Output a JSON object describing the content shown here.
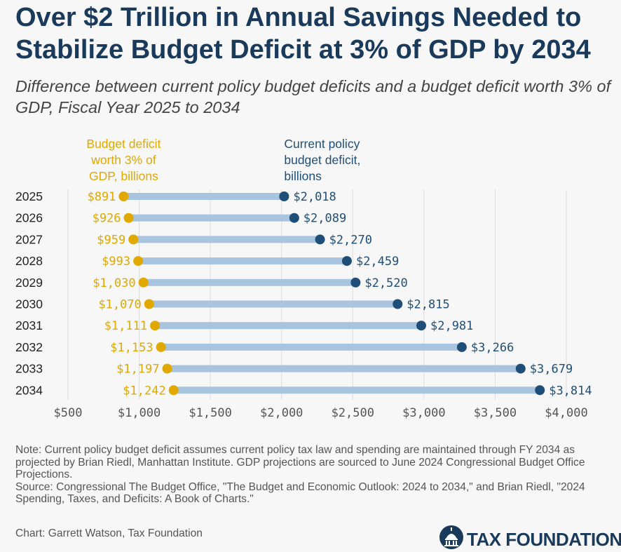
{
  "title": "Over $2 Trillion in Annual Savings Needed to Stabilize Budget Deficit at 3% of GDP by 2034",
  "subtitle": "Difference between current policy budget deficits and a budget deficit worth 3% of GDP, Fiscal Year 2025 to 2034",
  "notes": {
    "note": "Note: Current policy budget deficit assumes current policy tax law and spending are maintained through FY 2034 as projected by Brian Riedl, Manhattan Institute. GDP projections are sourced to June 2024 Congressional Budget Office Projections.",
    "source": "Source: Congressional The Budget Office, \"The Budget and Economic Outlook: 2024 to 2034,\" and Brian Riedl, \"2024 Spending, Taxes, and Deficits: A Book of Charts.\""
  },
  "credit": "Chart: Garrett Watson, Tax Foundation",
  "logo_text": "TAX FOUNDATION",
  "colors": {
    "gold": "#e0a800",
    "navy": "#1f4e79",
    "bar": "#a9c4de",
    "title": "#1a3a5c"
  },
  "chart_data": {
    "type": "dumbbell",
    "categories": [
      "2025",
      "2026",
      "2027",
      "2028",
      "2029",
      "2030",
      "2031",
      "2032",
      "2033",
      "2034"
    ],
    "series": [
      {
        "name": "Budget deficit worth 3% of GDP, billions",
        "legend_lines": [
          "Budget deficit",
          "worth 3% of",
          "GDP, billions"
        ],
        "color": "#e0a800",
        "values": [
          891,
          926,
          959,
          993,
          1030,
          1070,
          1111,
          1153,
          1197,
          1242
        ],
        "labels": [
          "$891",
          "$926",
          "$959",
          "$993",
          "$1,030",
          "$1,070",
          "$1,111",
          "$1,153",
          "$1,197",
          "$1,242"
        ]
      },
      {
        "name": "Current policy budget deficit, billions",
        "legend_lines": [
          "Current policy",
          "budget deficit,",
          "billions"
        ],
        "color": "#1f4e79",
        "values": [
          2018,
          2089,
          2270,
          2459,
          2520,
          2815,
          2981,
          3266,
          3679,
          3814
        ],
        "labels": [
          "$2,018",
          "$2,089",
          "$2,270",
          "$2,459",
          "$2,520",
          "$2,815",
          "$2,981",
          "$3,266",
          "$3,679",
          "$3,814"
        ]
      }
    ],
    "xlim": [
      500,
      4000
    ],
    "xticks": [
      500,
      1000,
      1500,
      2000,
      2500,
      3000,
      3500,
      4000
    ],
    "xtick_labels": [
      "$500",
      "$1,000",
      "$1,500",
      "$2,000",
      "$2,500",
      "$3,000",
      "$3,500",
      "$4,000"
    ],
    "grid": true,
    "legend": "top, above starting points"
  }
}
